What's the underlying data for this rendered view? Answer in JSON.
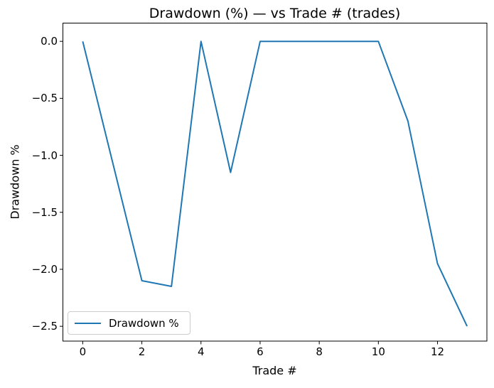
{
  "chart_data": {
    "type": "line",
    "title": "Drawdown (%) — vs Trade # (trades)",
    "xlabel": "Trade #",
    "ylabel": "Drawdown %",
    "x": [
      0,
      1,
      2,
      3,
      4,
      5,
      6,
      7,
      8,
      9,
      10,
      11,
      12,
      13
    ],
    "series": [
      {
        "name": "Drawdown %",
        "color": "#1f77b4",
        "values": [
          0.0,
          -1.05,
          -2.1,
          -2.15,
          0.0,
          -1.15,
          0.0,
          0.0,
          0.0,
          0.0,
          0.0,
          -0.7,
          -1.95,
          -2.5
        ]
      }
    ],
    "x_ticks": [
      0,
      2,
      4,
      6,
      8,
      10,
      12
    ],
    "y_ticks": [
      0.0,
      -0.5,
      -1.0,
      -1.5,
      -2.0,
      -2.5
    ],
    "xlim": [
      -0.67,
      13.67
    ],
    "ylim": [
      -2.63,
      0.16
    ],
    "grid": false,
    "legend_position": "lower left"
  },
  "colors": {
    "line": "#1f77b4",
    "text": "#000000",
    "spine": "#000000",
    "legend_border": "#cccccc",
    "background": "#ffffff"
  }
}
